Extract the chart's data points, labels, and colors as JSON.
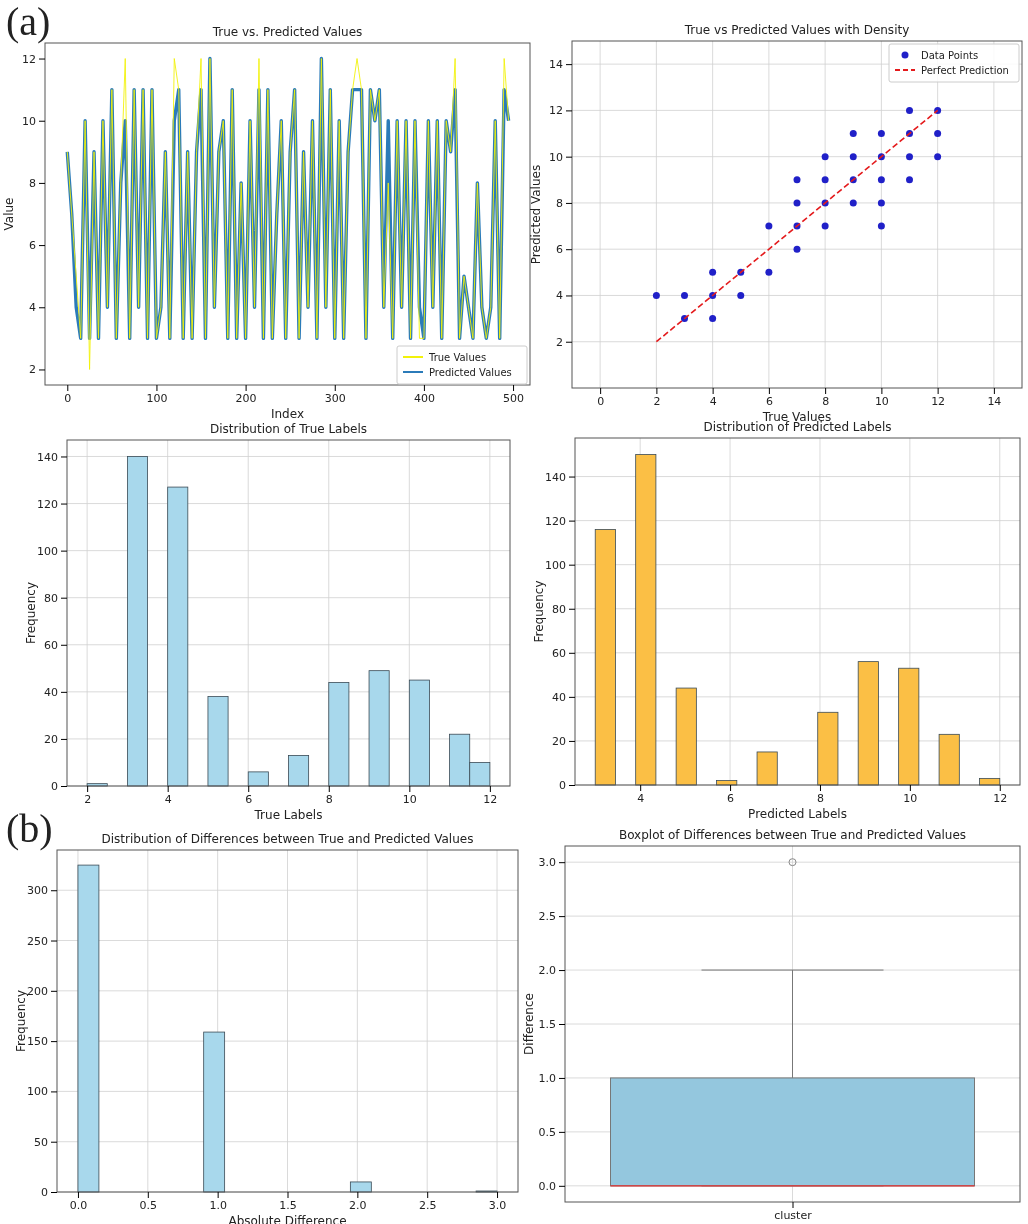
{
  "chart_data": [
    {
      "type": "line",
      "title": "True vs. Predicted Values",
      "xlabel": "Index",
      "ylabel": "Value",
      "annotations": [
        "(a)"
      ],
      "xlim": [
        -25,
        519
      ],
      "ylim": [
        1.5,
        12.5
      ],
      "xticks": [
        0,
        100,
        200,
        300,
        400,
        500
      ],
      "yticks": [
        2,
        4,
        6,
        8,
        10,
        12
      ],
      "legend": "bottom right",
      "grid": false,
      "x": [
        0,
        5,
        10,
        15,
        20,
        25,
        30,
        35,
        40,
        45,
        50,
        55,
        60,
        65,
        70,
        75,
        80,
        85,
        90,
        95,
        100,
        105,
        110,
        115,
        120,
        125,
        130,
        135,
        140,
        145,
        150,
        155,
        160,
        165,
        170,
        175,
        180,
        185,
        190,
        195,
        200,
        205,
        210,
        215,
        220,
        225,
        230,
        235,
        240,
        245,
        250,
        255,
        260,
        265,
        270,
        275,
        280,
        285,
        290,
        295,
        300,
        305,
        310,
        315,
        320,
        325,
        330,
        335,
        340,
        345,
        350,
        355,
        360,
        365,
        370,
        375,
        380,
        385,
        390,
        395,
        400,
        405,
        410,
        415,
        420,
        425,
        430,
        435,
        440,
        445,
        450,
        455,
        460,
        465,
        470,
        475,
        480,
        485,
        490,
        495
      ],
      "series": [
        {
          "name": "True Values",
          "color": "#f2f20a",
          "values": [
            9,
            7,
            5,
            3,
            10,
            2,
            9,
            3,
            10,
            4,
            11,
            3,
            8,
            12,
            3,
            11,
            4,
            11,
            3,
            11,
            3,
            4,
            9,
            3,
            12,
            11,
            3,
            9,
            3,
            9,
            12,
            3,
            12,
            4,
            9,
            10,
            3,
            11,
            3,
            8,
            3,
            10,
            4,
            12,
            3,
            11,
            3,
            7,
            10,
            3,
            9,
            11,
            3,
            9,
            4,
            10,
            3,
            12,
            4,
            11,
            3,
            10,
            3,
            9,
            11,
            12,
            11,
            3,
            11,
            10,
            11,
            4,
            8,
            3,
            10,
            4,
            10,
            3,
            10,
            3,
            3,
            10,
            4,
            10,
            3,
            10,
            9,
            12,
            3,
            5,
            4,
            3,
            8,
            4,
            3,
            4,
            10,
            3,
            12,
            10
          ]
        },
        {
          "name": "Predicted Values",
          "color": "#2b7bb9",
          "values": [
            9,
            7,
            4,
            3,
            10,
            3,
            9,
            3,
            10,
            4,
            11,
            3,
            8,
            10,
            3,
            11,
            4,
            11,
            3,
            11,
            3,
            4,
            9,
            3,
            10,
            11,
            3,
            9,
            3,
            9,
            11,
            3,
            12,
            4,
            9,
            10,
            3,
            11,
            3,
            8,
            3,
            10,
            4,
            11,
            3,
            11,
            3,
            7,
            10,
            3,
            9,
            11,
            3,
            9,
            4,
            10,
            3,
            12,
            4,
            11,
            3,
            10,
            3,
            9,
            11,
            11,
            11,
            3,
            11,
            10,
            11,
            4,
            10,
            3,
            10,
            4,
            10,
            3,
            10,
            4,
            3,
            10,
            4,
            10,
            3,
            10,
            9,
            11,
            3,
            5,
            4,
            3,
            8,
            4,
            3,
            4,
            10,
            3,
            11,
            10
          ]
        }
      ]
    },
    {
      "type": "scatter",
      "title": "True vs Predicted Values with Density",
      "xlabel": "True Values",
      "ylabel": "Predicted Values",
      "xlim": [
        -1,
        15
      ],
      "ylim": [
        0,
        15
      ],
      "xticks": [
        0,
        2,
        4,
        6,
        8,
        10,
        12,
        14
      ],
      "yticks": [
        2,
        4,
        6,
        8,
        10,
        12,
        14
      ],
      "grid": true,
      "legend": "top right",
      "series": [
        {
          "name": "Data Points",
          "type": "scatter",
          "marker": "circle",
          "color": "#2020c8",
          "x": [
            2,
            3,
            3,
            4,
            4,
            4,
            5,
            5,
            6,
            6,
            7,
            7,
            7,
            7,
            8,
            8,
            8,
            8,
            9,
            9,
            9,
            9,
            10,
            10,
            10,
            10,
            10,
            11,
            11,
            11,
            11,
            12,
            12,
            12
          ],
          "values": [
            4,
            4,
            3,
            3,
            4,
            5,
            4,
            5,
            5,
            7,
            6,
            7,
            8,
            9,
            7,
            8,
            9,
            10,
            8,
            9,
            10,
            11,
            7,
            8,
            9,
            10,
            11,
            9,
            10,
            11,
            12,
            10,
            11,
            12
          ]
        },
        {
          "name": "Perfect Prediction",
          "type": "line",
          "line_style": "dashed",
          "color": "#e41a1c",
          "x": [
            2,
            12
          ],
          "values": [
            2,
            12
          ]
        }
      ]
    },
    {
      "type": "histogram",
      "title": "Distribution of True Labels",
      "xlabel": "True Labels",
      "ylabel": "Frequency",
      "xlim": [
        1.5,
        12.5
      ],
      "ylim": [
        0,
        147
      ],
      "xticks": [
        2,
        4,
        6,
        8,
        10,
        12
      ],
      "yticks": [
        0,
        20,
        40,
        60,
        80,
        100,
        120,
        140
      ],
      "grid": true,
      "color": "#a8d8ec",
      "bins": [
        2,
        2.5,
        3,
        3.5,
        4,
        4.5,
        5,
        5.5,
        6,
        6.5,
        7,
        7.5,
        8,
        8.5,
        9,
        9.5,
        10,
        10.5,
        11,
        11.5,
        12
      ],
      "values": [
        1,
        0,
        140,
        0,
        127,
        0,
        38,
        0,
        6,
        0,
        13,
        0,
        44,
        0,
        49,
        0,
        45,
        0,
        22,
        10
      ]
    },
    {
      "type": "histogram",
      "title": "Distribution of Predicted Labels",
      "xlabel": "Predicted Labels",
      "ylabel": "Frequency",
      "xlim": [
        2.55,
        12.45
      ],
      "ylim": [
        0,
        157.5
      ],
      "xticks": [
        4,
        6,
        8,
        10,
        12
      ],
      "yticks": [
        0,
        20,
        40,
        60,
        80,
        100,
        120,
        140
      ],
      "grid": true,
      "color": "#fbbf45",
      "bins": [
        3,
        3.45,
        3.9,
        4.35,
        4.8,
        5.25,
        5.7,
        6.15,
        6.6,
        7.05,
        7.5,
        7.95,
        8.4,
        8.85,
        9.3,
        9.75,
        10.2,
        10.65,
        11.1,
        11.55,
        12
      ],
      "values": [
        116,
        0,
        150,
        0,
        44,
        0,
        2,
        0,
        15,
        0,
        0,
        33,
        0,
        56,
        0,
        53,
        0,
        23,
        0,
        3
      ]
    },
    {
      "type": "histogram",
      "title": "Distribution of Differences between True and Predicted Values",
      "xlabel": "Absolute Difference",
      "ylabel": "Frequency",
      "annotations": [
        "(b)"
      ],
      "xlim": [
        -0.15,
        3.15
      ],
      "ylim": [
        0,
        340
      ],
      "xticks": [
        {
          "value": 0,
          "label": "0.0"
        },
        {
          "value": 0.5,
          "label": "0.5"
        },
        {
          "value": 1,
          "label": "1.0"
        },
        {
          "value": 1.5,
          "label": "1.5"
        },
        {
          "value": 2,
          "label": "2.0"
        },
        {
          "value": 2.5,
          "label": "2.5"
        },
        {
          "value": 3,
          "label": "3.0"
        }
      ],
      "yticks": [
        0,
        50,
        100,
        150,
        200,
        250,
        300
      ],
      "grid": true,
      "color": "#a8d8ec",
      "bins": [
        0,
        0.15,
        0.3,
        0.45,
        0.6,
        0.75,
        0.9,
        1.05,
        1.2,
        1.35,
        1.5,
        1.65,
        1.8,
        1.95,
        2.1,
        2.25,
        2.4,
        2.55,
        2.7,
        2.85,
        3
      ],
      "values": [
        325,
        0,
        0,
        0,
        0,
        0,
        159,
        0,
        0,
        0,
        0,
        0,
        0,
        10,
        0,
        0,
        0,
        0,
        0,
        1
      ]
    },
    {
      "type": "box",
      "title": "Boxplot of Differences between True and Predicted Values",
      "ylabel": "Difference",
      "categories": [
        "cluster"
      ],
      "ylim": [
        -0.15,
        3.15
      ],
      "yticks": [
        {
          "value": 0,
          "label": "0.0"
        },
        {
          "value": 0.5,
          "label": "0.5"
        },
        {
          "value": 1,
          "label": "1.0"
        },
        {
          "value": 1.5,
          "label": "1.5"
        },
        {
          "value": 2,
          "label": "2.0"
        },
        {
          "value": 2.5,
          "label": "2.5"
        },
        {
          "value": 3,
          "label": "3.0"
        }
      ],
      "grid": true,
      "color": "#94c7de",
      "boxes": [
        {
          "low": 0,
          "q1": 0,
          "median": 0,
          "q3": 1,
          "high": 2,
          "outliers": [
            3
          ]
        }
      ]
    }
  ]
}
